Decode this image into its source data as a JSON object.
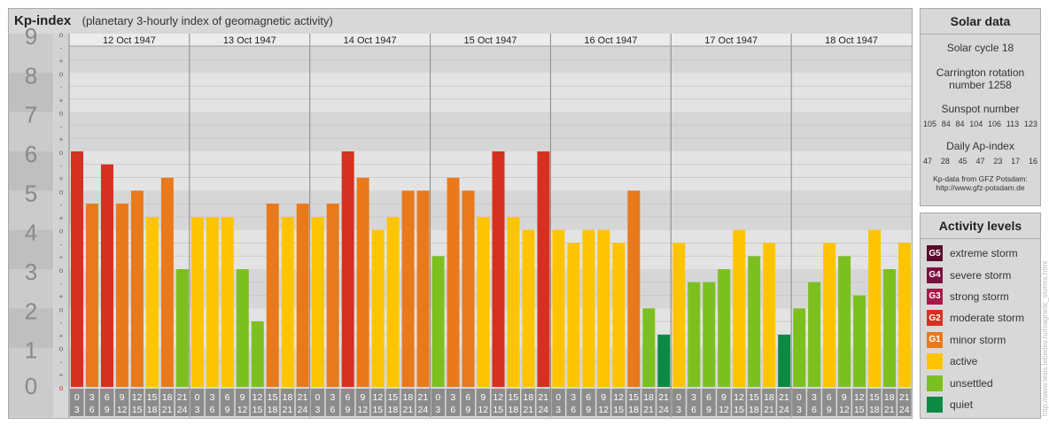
{
  "header": {
    "title": "Kp-index",
    "subtitle": "(planetary 3-hourly index of geomagnetic activity)"
  },
  "chart_data": {
    "type": "bar",
    "title": "Kp-index",
    "subtitle": "(planetary 3-hourly index of geomagnetic activity)",
    "ylim": [
      0,
      9
    ],
    "y_ticks": [
      "0",
      "1",
      "2",
      "3",
      "4",
      "5",
      "6",
      "7",
      "8",
      "9"
    ],
    "minor_tick_marks": [
      "o",
      "+",
      "-"
    ],
    "grid": true,
    "interval_labels": [
      [
        "0",
        "3"
      ],
      [
        "3",
        "6"
      ],
      [
        "6",
        "9"
      ],
      [
        "9",
        "12"
      ],
      [
        "12",
        "15"
      ],
      [
        "15",
        "18"
      ],
      [
        "18",
        "21"
      ],
      [
        "21",
        "24"
      ]
    ],
    "days": [
      {
        "date": "12 Oct 1947",
        "values": [
          6.0,
          4.67,
          5.67,
          4.67,
          5.0,
          4.33,
          5.33,
          3.0
        ]
      },
      {
        "date": "13 Oct 1947",
        "values": [
          4.33,
          4.33,
          4.33,
          3.0,
          1.67,
          4.67,
          4.33,
          4.67
        ]
      },
      {
        "date": "14 Oct 1947",
        "values": [
          4.33,
          4.67,
          6.0,
          5.33,
          4.0,
          4.33,
          5.0,
          5.0
        ]
      },
      {
        "date": "15 Oct 1947",
        "values": [
          3.33,
          5.33,
          5.0,
          4.33,
          6.0,
          4.33,
          4.0,
          6.0
        ]
      },
      {
        "date": "16 Oct 1947",
        "values": [
          4.0,
          3.67,
          4.0,
          4.0,
          3.67,
          5.0,
          2.0,
          1.33
        ]
      },
      {
        "date": "17 Oct 1947",
        "values": [
          3.67,
          2.67,
          2.67,
          3.0,
          4.0,
          3.33,
          3.67,
          1.33
        ]
      },
      {
        "date": "18 Oct 1947",
        "values": [
          2.0,
          2.67,
          3.67,
          3.33,
          2.33,
          4.0,
          3.0,
          3.67
        ]
      }
    ],
    "colors": {
      "G5": "#5a0a2a",
      "G4": "#7a1040",
      "G3": "#aa1848",
      "G2": "#d63020",
      "G1": "#e87a1c",
      "active": "#ffc400",
      "unsettled": "#7cc020",
      "quiet": "#0c8a44"
    }
  },
  "solar": {
    "title": "Solar data",
    "cycle": "Solar cycle 18",
    "carrington_line1": "Carrington rotation",
    "carrington_line2": "number 1258",
    "sunspot_label": "Sunspot number",
    "sunspot_values": [
      "105",
      "84",
      "84",
      "104",
      "106",
      "113",
      "123"
    ],
    "ap_label": "Daily Ap-index",
    "ap_values": [
      "47",
      "28",
      "45",
      "47",
      "23",
      "17",
      "16"
    ],
    "source_line1": "Kp-data from  GFZ Potsdam:",
    "source_line2": "http://www.gfz-potsdam.de"
  },
  "activity": {
    "title": "Activity levels",
    "levels": [
      {
        "badge": "G5",
        "label": "extreme storm",
        "color": "#5a0a2a"
      },
      {
        "badge": "G4",
        "label": "severe storm",
        "color": "#7a1040"
      },
      {
        "badge": "G3",
        "label": "strong storm",
        "color": "#aa1848"
      },
      {
        "badge": "G2",
        "label": "moderate storm",
        "color": "#d63020"
      },
      {
        "badge": "G1",
        "label": "minor storm",
        "color": "#e87a1c"
      },
      {
        "badge": "",
        "label": "active",
        "color": "#ffc400"
      },
      {
        "badge": "",
        "label": "unsettled",
        "color": "#7cc020"
      },
      {
        "badge": "",
        "label": "quiet",
        "color": "#0c8a44"
      }
    ]
  },
  "credit": "http://www.tesis.lebedev.ru/magnetic_storms.html"
}
